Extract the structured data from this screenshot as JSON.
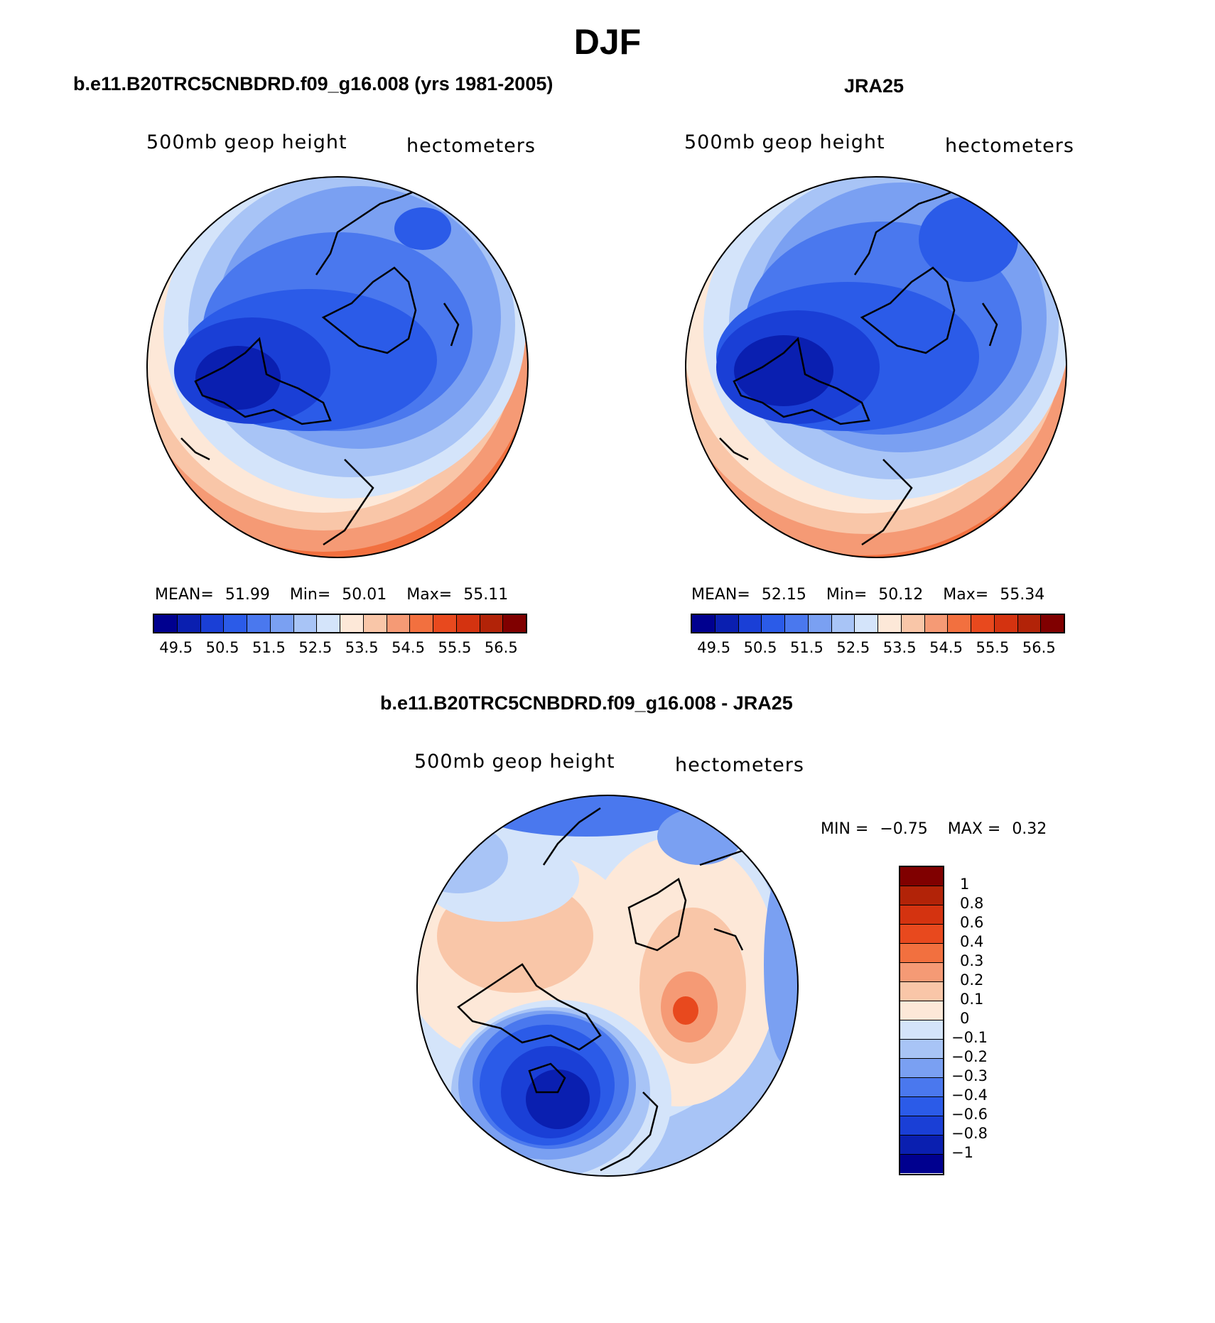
{
  "figure": {
    "title": "DJF"
  },
  "panels": {
    "model": {
      "title": "b.e11.B20TRC5CNBDRD.f09_g16.008 (yrs 1981-2005)",
      "left_label": "500mb geop height",
      "right_label": "hectometers",
      "mean_label": "MEAN=",
      "mean": "51.99",
      "min_label": "Min=",
      "min": "50.01",
      "max_label": "Max=",
      "max": "55.11"
    },
    "obs": {
      "title": "JRA25",
      "left_label": "500mb geop height",
      "right_label": "hectometers",
      "mean_label": "MEAN=",
      "mean": "52.15",
      "min_label": "Min=",
      "min": "50.12",
      "max_label": "Max=",
      "max": "55.34"
    },
    "diff": {
      "title": "b.e11.B20TRC5CNBDRD.f09_g16.008 - JRA25",
      "left_label": "500mb geop height",
      "right_label": "hectometers",
      "min_label": "MIN =",
      "min": "−0.75",
      "max_label": "MAX =",
      "max": "0.32"
    }
  },
  "colorbars": {
    "abs_ticks": [
      "49.5",
      "50.5",
      "51.5",
      "52.5",
      "53.5",
      "54.5",
      "55.5",
      "56.5"
    ],
    "abs_colors": [
      "#00008f",
      "#0a1fb0",
      "#1a3fd6",
      "#2b5be8",
      "#4a78ee",
      "#7aa0f2",
      "#a8c4f6",
      "#d4e4fa",
      "#fde8d8",
      "#f9c6a8",
      "#f59a75",
      "#f2703f",
      "#e8491e",
      "#d43310",
      "#b22308",
      "#800000"
    ],
    "diff_ticks": [
      "1",
      "0.8",
      "0.6",
      "0.4",
      "0.3",
      "0.2",
      "0.1",
      "0",
      "−0.1",
      "−0.2",
      "−0.3",
      "−0.4",
      "−0.6",
      "−0.8",
      "−1"
    ],
    "diff_colors": [
      "#800000",
      "#b22308",
      "#d43310",
      "#e8491e",
      "#f2703f",
      "#f59a75",
      "#f9c6a8",
      "#fde8d8",
      "#d4e4fa",
      "#a8c4f6",
      "#7aa0f2",
      "#4a78ee",
      "#2b5be8",
      "#1a3fd6",
      "#0a1fb0",
      "#00008f"
    ]
  }
}
